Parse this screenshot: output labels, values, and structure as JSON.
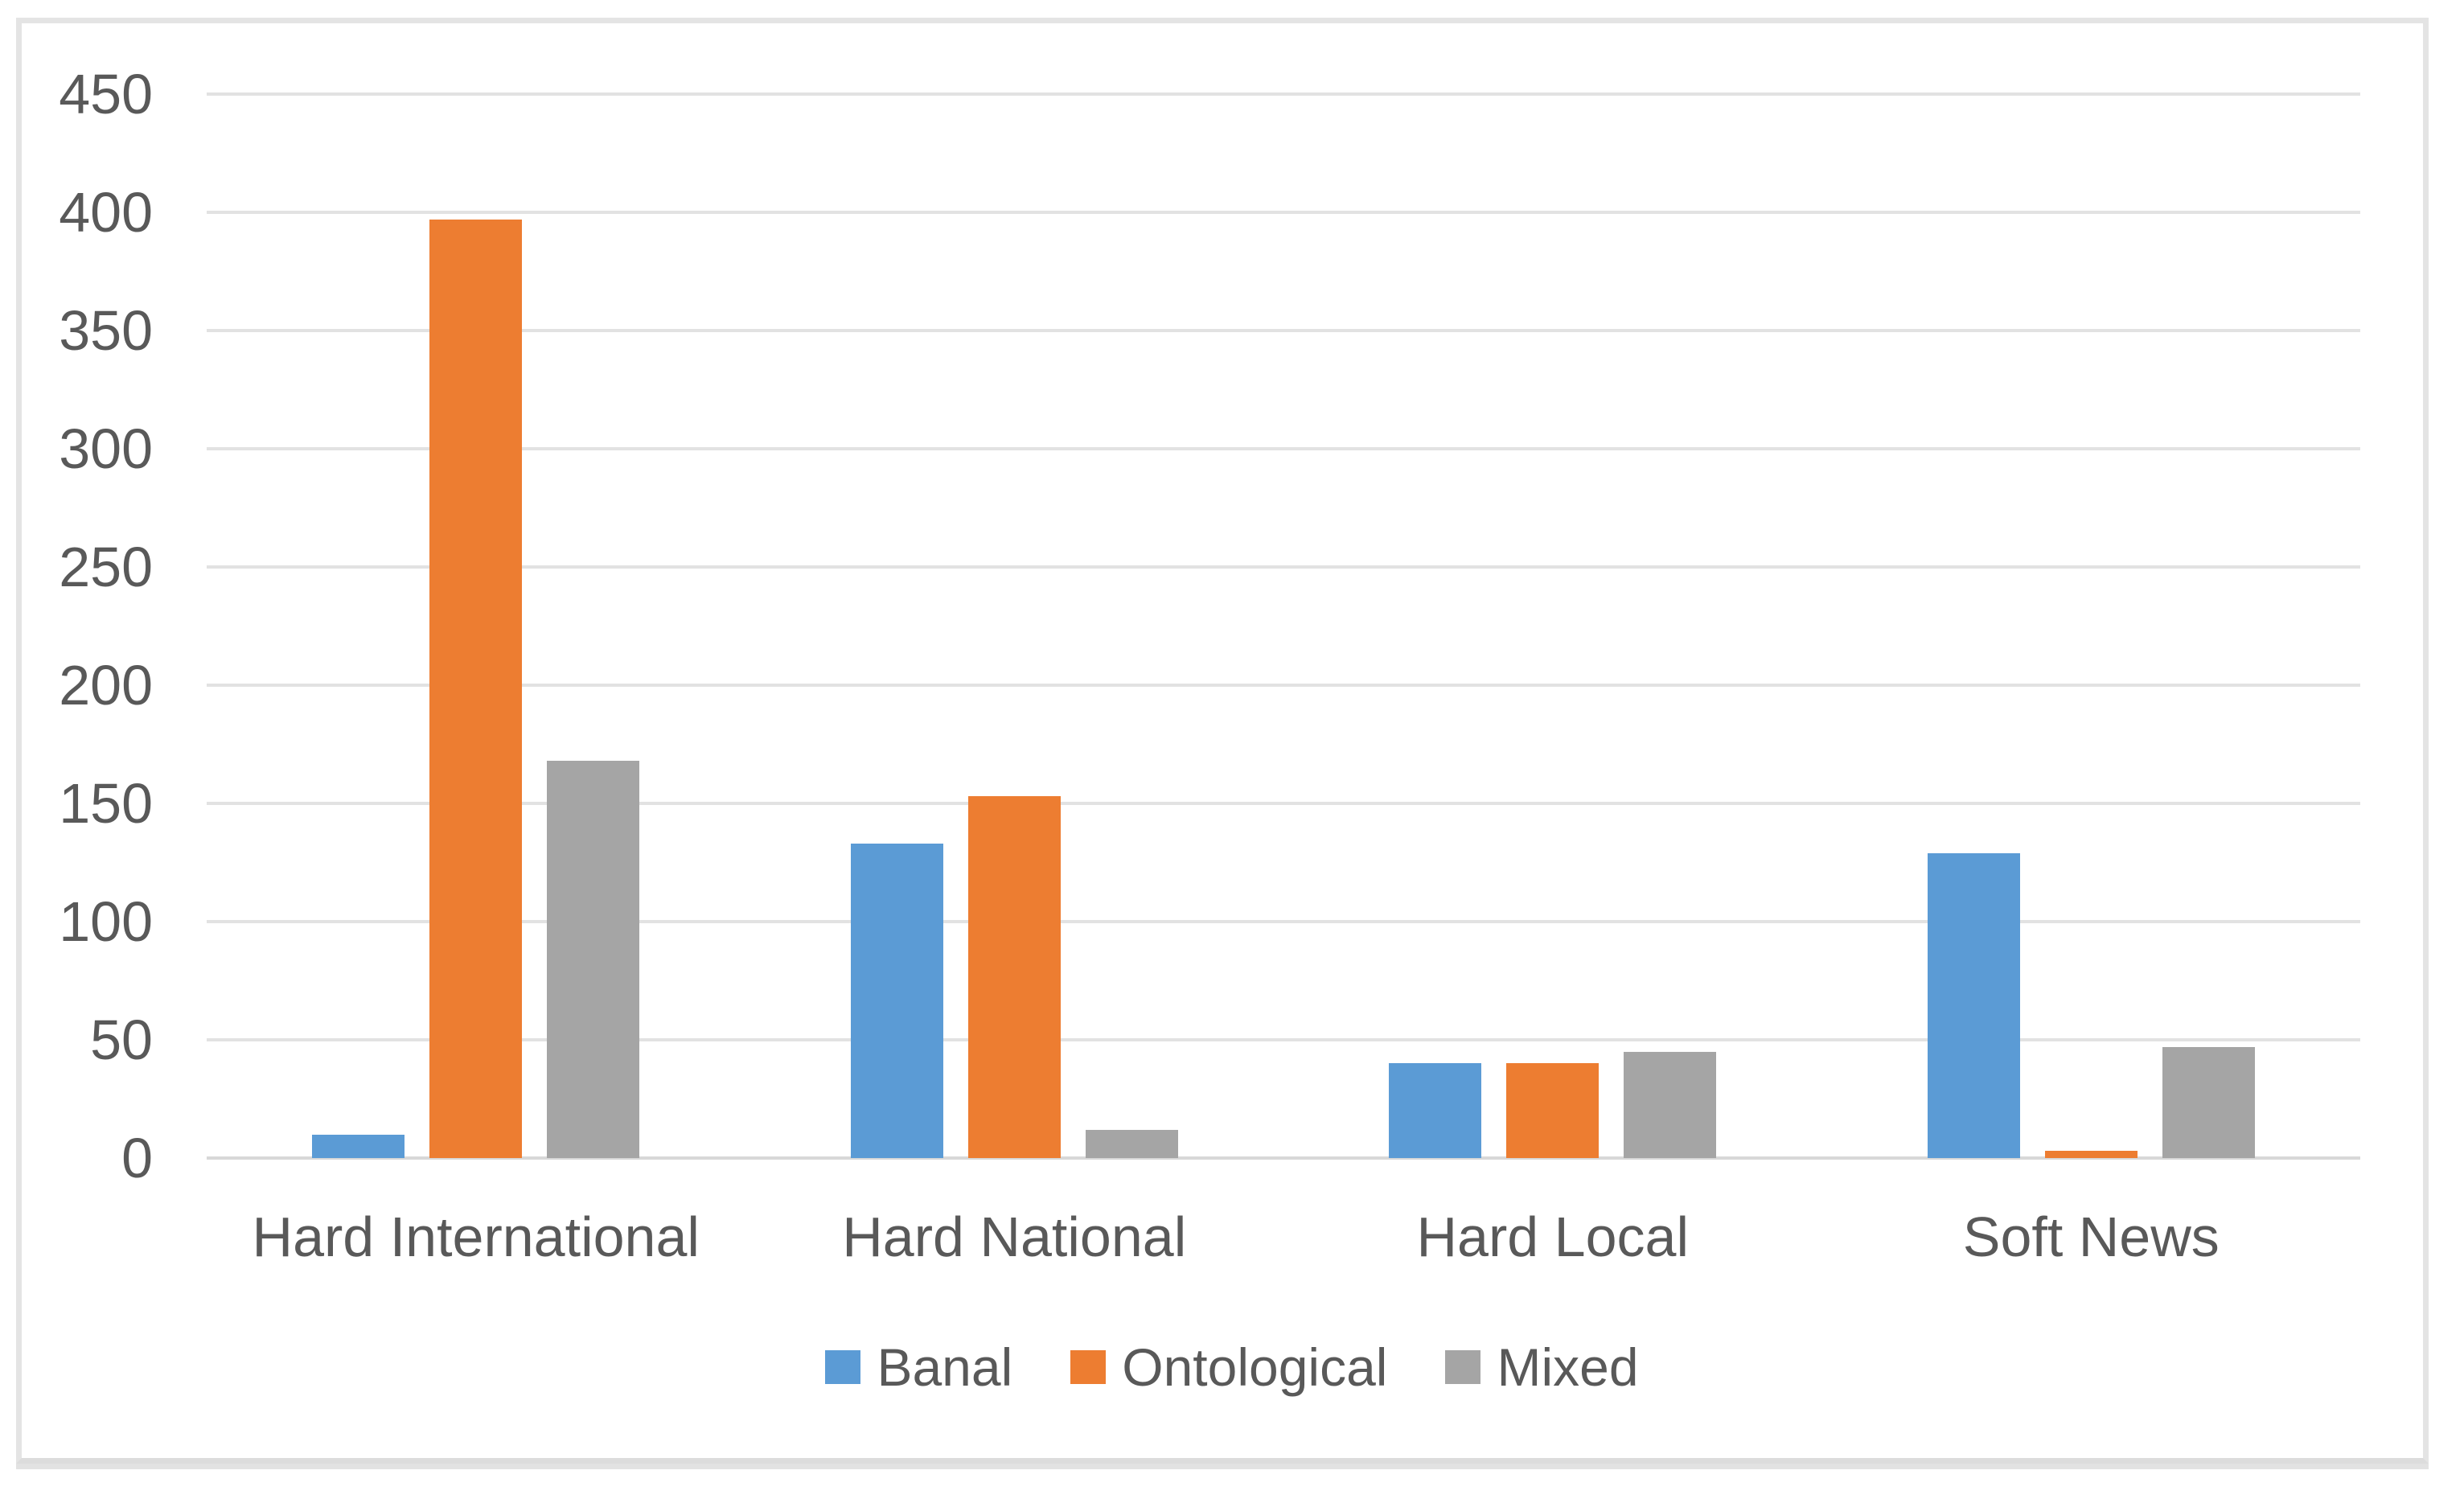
{
  "figure": {
    "kind": "embedded-chart-figure",
    "background": "#ffffff",
    "border_color": "#e4e4e4",
    "text_color": "#595959",
    "gridline_color": "#e2e2e2"
  },
  "chart_data": {
    "type": "bar",
    "title": "",
    "xlabel": "",
    "ylabel": "",
    "categories": [
      "Hard International",
      "Hard National",
      "Hard Local",
      "Soft News"
    ],
    "series": [
      {
        "name": "Banal",
        "color": "#5B9BD5",
        "values": [
          10,
          133,
          40,
          129
        ]
      },
      {
        "name": "Ontological",
        "color": "#ED7D31",
        "values": [
          397,
          153,
          40,
          3
        ]
      },
      {
        "name": "Mixed",
        "color": "#A5A5A5",
        "values": [
          168,
          12,
          45,
          47
        ]
      }
    ],
    "ylim": [
      0,
      450
    ],
    "ytick_step": 50,
    "yticks": [
      "0",
      "50",
      "100",
      "150",
      "200",
      "250",
      "300",
      "350",
      "400",
      "450"
    ],
    "grid": true,
    "legend_position": "bottom"
  }
}
